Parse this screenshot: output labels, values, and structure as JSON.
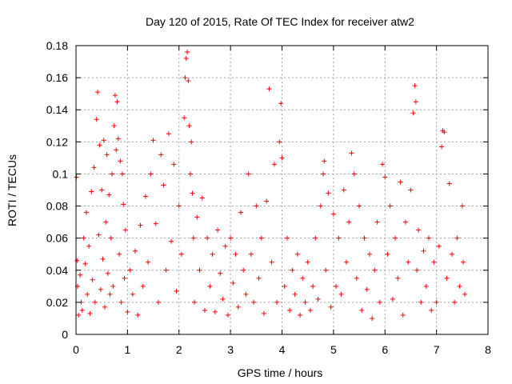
{
  "chart_data": {
    "type": "scatter",
    "title": "Day 120 of 2015, Rate Of TEC Index for receiver atw2",
    "xlabel": "GPS time / hours",
    "ylabel": "ROTI / TECUs",
    "xlim": [
      0,
      8
    ],
    "ylim": [
      0,
      0.18
    ],
    "x_ticks": [
      0,
      1,
      2,
      3,
      4,
      5,
      6,
      7,
      8
    ],
    "x_tick_labels": [
      "0",
      "1",
      "2",
      "3",
      "4",
      "5",
      "6",
      "7",
      "8"
    ],
    "y_ticks": [
      0,
      0.02,
      0.04,
      0.06,
      0.08,
      0.1,
      0.12,
      0.14,
      0.16,
      0.18
    ],
    "y_tick_labels": [
      "0",
      "0.02",
      "0.04",
      "0.06",
      "0.08",
      "0.1",
      "0.12",
      "0.14",
      "0.16",
      "0.18"
    ],
    "grid": true,
    "marker": "+",
    "point_color": "#ff0000",
    "series": [
      {
        "name": "ROTI",
        "points": [
          [
            0.01,
            0.098
          ],
          [
            0.02,
            0.046
          ],
          [
            0.03,
            0.03
          ],
          [
            0.05,
            0.012
          ],
          [
            0.08,
            0.037
          ],
          [
            0.1,
            0.02
          ],
          [
            0.12,
            0.015
          ],
          [
            0.15,
            0.06
          ],
          [
            0.18,
            0.044
          ],
          [
            0.2,
            0.076
          ],
          [
            0.22,
            0.025
          ],
          [
            0.25,
            0.055
          ],
          [
            0.27,
            0.013
          ],
          [
            0.3,
            0.089
          ],
          [
            0.32,
            0.034
          ],
          [
            0.35,
            0.104
          ],
          [
            0.37,
            0.02
          ],
          [
            0.4,
            0.134
          ],
          [
            0.42,
            0.151
          ],
          [
            0.44,
            0.062
          ],
          [
            0.46,
            0.118
          ],
          [
            0.48,
            0.028
          ],
          [
            0.5,
            0.09
          ],
          [
            0.52,
            0.047
          ],
          [
            0.54,
            0.121
          ],
          [
            0.56,
            0.017
          ],
          [
            0.58,
            0.07
          ],
          [
            0.6,
            0.112
          ],
          [
            0.62,
            0.038
          ],
          [
            0.64,
            0.087
          ],
          [
            0.66,
            0.025
          ],
          [
            0.68,
            0.06
          ],
          [
            0.7,
            0.1
          ],
          [
            0.72,
            0.03
          ],
          [
            0.74,
            0.13
          ],
          [
            0.76,
            0.149
          ],
          [
            0.78,
            0.115
          ],
          [
            0.8,
            0.145
          ],
          [
            0.82,
            0.122
          ],
          [
            0.84,
            0.05
          ],
          [
            0.86,
            0.108
          ],
          [
            0.88,
            0.02
          ],
          [
            0.9,
            0.1
          ],
          [
            0.92,
            0.081
          ],
          [
            0.94,
            0.035
          ],
          [
            0.96,
            0.065
          ],
          [
            1.0,
            0.014
          ],
          [
            1.05,
            0.04
          ],
          [
            1.1,
            0.025
          ],
          [
            1.15,
            0.052
          ],
          [
            1.2,
            0.012
          ],
          [
            1.25,
            0.068
          ],
          [
            1.3,
            0.03
          ],
          [
            1.35,
            0.086
          ],
          [
            1.4,
            0.045
          ],
          [
            1.45,
            0.1
          ],
          [
            1.5,
            0.121
          ],
          [
            1.55,
            0.069
          ],
          [
            1.6,
            0.02
          ],
          [
            1.65,
            0.112
          ],
          [
            1.7,
            0.093
          ],
          [
            1.75,
            0.04
          ],
          [
            1.8,
            0.125
          ],
          [
            1.85,
            0.058
          ],
          [
            1.9,
            0.106
          ],
          [
            1.95,
            0.027
          ],
          [
            2.0,
            0.08
          ],
          [
            2.05,
            0.05
          ],
          [
            2.1,
            0.135
          ],
          [
            2.12,
            0.16
          ],
          [
            2.14,
            0.172
          ],
          [
            2.16,
            0.176
          ],
          [
            2.18,
            0.158
          ],
          [
            2.2,
            0.13
          ],
          [
            2.22,
            0.1
          ],
          [
            2.24,
            0.12
          ],
          [
            2.26,
            0.088
          ],
          [
            2.28,
            0.06
          ],
          [
            2.3,
            0.02
          ],
          [
            2.35,
            0.073
          ],
          [
            2.4,
            0.04
          ],
          [
            2.45,
            0.085
          ],
          [
            2.5,
            0.015
          ],
          [
            2.55,
            0.06
          ],
          [
            2.6,
            0.03
          ],
          [
            2.65,
            0.05
          ],
          [
            2.7,
            0.014
          ],
          [
            2.75,
            0.065
          ],
          [
            2.8,
            0.038
          ],
          [
            2.85,
            0.022
          ],
          [
            2.9,
            0.055
          ],
          [
            2.95,
            0.012
          ],
          [
            3.0,
            0.06
          ],
          [
            3.05,
            0.032
          ],
          [
            3.1,
            0.05
          ],
          [
            3.15,
            0.017
          ],
          [
            3.2,
            0.076
          ],
          [
            3.25,
            0.04
          ],
          [
            3.3,
            0.025
          ],
          [
            3.35,
            0.1
          ],
          [
            3.4,
            0.05
          ],
          [
            3.45,
            0.02
          ],
          [
            3.5,
            0.08
          ],
          [
            3.55,
            0.035
          ],
          [
            3.6,
            0.06
          ],
          [
            3.65,
            0.013
          ],
          [
            3.7,
            0.083
          ],
          [
            3.75,
            0.153
          ],
          [
            3.8,
            0.045
          ],
          [
            3.85,
            0.106
          ],
          [
            3.9,
            0.02
          ],
          [
            3.95,
            0.12
          ],
          [
            3.98,
            0.144
          ],
          [
            4.0,
            0.11
          ],
          [
            4.05,
            0.03
          ],
          [
            4.1,
            0.06
          ],
          [
            4.15,
            0.015
          ],
          [
            4.2,
            0.04
          ],
          [
            4.25,
            0.025
          ],
          [
            4.3,
            0.05
          ],
          [
            4.35,
            0.012
          ],
          [
            4.4,
            0.035
          ],
          [
            4.45,
            0.02
          ],
          [
            4.5,
            0.045
          ],
          [
            4.55,
            0.015
          ],
          [
            4.6,
            0.03
          ],
          [
            4.65,
            0.06
          ],
          [
            4.7,
            0.022
          ],
          [
            4.75,
            0.08
          ],
          [
            4.8,
            0.1
          ],
          [
            4.82,
            0.108
          ],
          [
            4.85,
            0.04
          ],
          [
            4.9,
            0.088
          ],
          [
            4.95,
            0.017
          ],
          [
            5.0,
            0.075
          ],
          [
            5.05,
            0.03
          ],
          [
            5.1,
            0.06
          ],
          [
            5.15,
            0.025
          ],
          [
            5.2,
            0.09
          ],
          [
            5.25,
            0.045
          ],
          [
            5.3,
            0.07
          ],
          [
            5.35,
            0.113
          ],
          [
            5.4,
            0.1
          ],
          [
            5.45,
            0.035
          ],
          [
            5.5,
            0.08
          ],
          [
            5.55,
            0.015
          ],
          [
            5.6,
            0.06
          ],
          [
            5.65,
            0.028
          ],
          [
            5.7,
            0.05
          ],
          [
            5.75,
            0.01
          ],
          [
            5.8,
            0.04
          ],
          [
            5.85,
            0.07
          ],
          [
            5.9,
            0.02
          ],
          [
            5.95,
            0.106
          ],
          [
            6.0,
            0.098
          ],
          [
            6.05,
            0.05
          ],
          [
            6.1,
            0.08
          ],
          [
            6.15,
            0.022
          ],
          [
            6.2,
            0.06
          ],
          [
            6.25,
            0.035
          ],
          [
            6.3,
            0.095
          ],
          [
            6.35,
            0.012
          ],
          [
            6.4,
            0.07
          ],
          [
            6.45,
            0.045
          ],
          [
            6.5,
            0.09
          ],
          [
            6.55,
            0.138
          ],
          [
            6.58,
            0.155
          ],
          [
            6.6,
            0.145
          ],
          [
            6.62,
            0.04
          ],
          [
            6.65,
            0.065
          ],
          [
            6.7,
            0.02
          ],
          [
            6.75,
            0.052
          ],
          [
            6.8,
            0.03
          ],
          [
            6.85,
            0.06
          ],
          [
            6.9,
            0.015
          ],
          [
            6.95,
            0.045
          ],
          [
            7.0,
            0.02
          ],
          [
            7.05,
            0.055
          ],
          [
            7.1,
            0.117
          ],
          [
            7.12,
            0.127
          ],
          [
            7.15,
            0.126
          ],
          [
            7.2,
            0.035
          ],
          [
            7.25,
            0.094
          ],
          [
            7.3,
            0.05
          ],
          [
            7.35,
            0.02
          ],
          [
            7.4,
            0.06
          ],
          [
            7.45,
            0.03
          ],
          [
            7.5,
            0.08
          ],
          [
            7.52,
            0.045
          ],
          [
            7.55,
            0.025
          ]
        ]
      }
    ]
  }
}
